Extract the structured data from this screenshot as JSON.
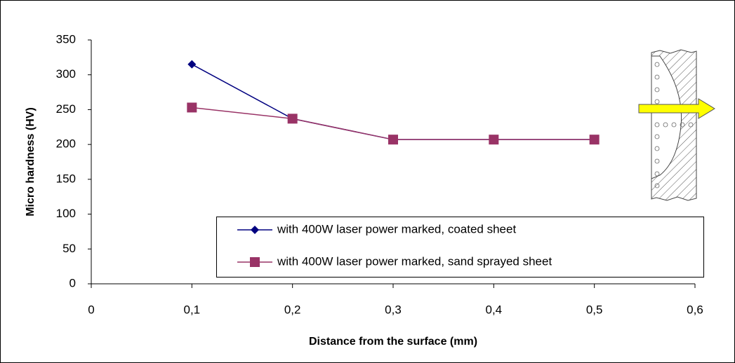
{
  "chart_data": {
    "type": "line",
    "x_label": "Distance from the surface (mm)",
    "y_label": "Micro hardness (HV)",
    "x": [
      0.1,
      0.2,
      0.3,
      0.4,
      0.5
    ],
    "series": [
      {
        "name": "with 400W laser power marked, coated sheet",
        "color": "#000080",
        "marker": "diamond",
        "values": [
          315,
          237,
          207,
          207,
          207
        ]
      },
      {
        "name": "with 400W laser power marked, sand sprayed sheet",
        "color": "#993366",
        "marker": "square",
        "values": [
          253,
          237,
          207,
          207,
          207
        ]
      }
    ],
    "xlim": [
      0,
      0.6
    ],
    "xticks": [
      0,
      {
        "value": 0.1,
        "label": "0,1"
      },
      {
        "value": 0.2,
        "label": "0,2"
      },
      {
        "value": 0.3,
        "label": "0,3"
      },
      {
        "value": 0.4,
        "label": "0,4"
      },
      {
        "value": 0.5,
        "label": "0,5"
      },
      {
        "value": 0.6,
        "label": "0,6"
      }
    ],
    "ylim": [
      0,
      350
    ],
    "yticks": [
      0,
      50,
      100,
      150,
      200,
      250,
      300,
      350
    ],
    "grid": false
  }
}
